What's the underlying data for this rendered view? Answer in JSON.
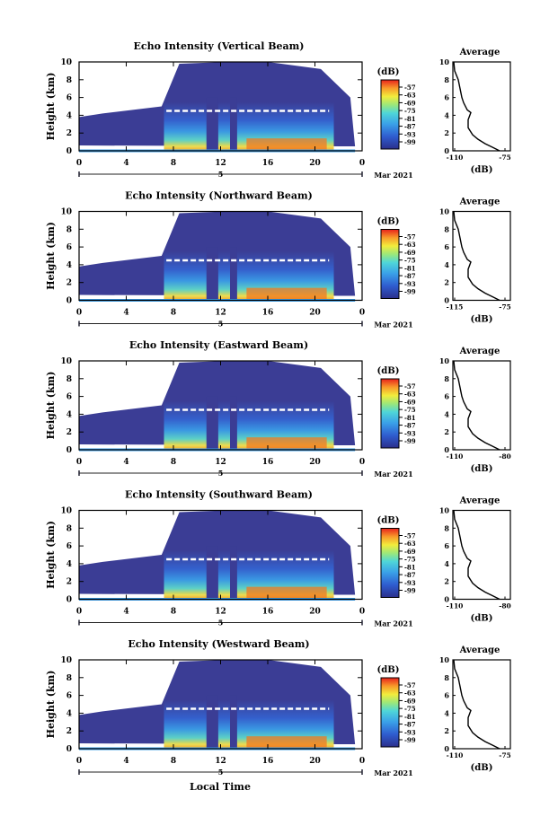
{
  "figure": {
    "xaxis_label": "Local Time",
    "colorbar_unit": "(dB)",
    "average_title": "Average",
    "average_xlabel": "(dB)",
    "date_label": "Mar 2021",
    "day_marker": "5",
    "ylabel": "Height (km)"
  },
  "chart_data": [
    {
      "type": "heatmap",
      "title": "Echo Intensity (Vertical Beam)",
      "ylabel": "Height (km)",
      "x_ticks": [
        "0",
        "4",
        "8",
        "12",
        "16",
        "20",
        "0"
      ],
      "y_ticks": [
        "0",
        "2",
        "4",
        "6",
        "8",
        "10"
      ],
      "xlim": [
        0,
        24
      ],
      "ylim": [
        0,
        10
      ],
      "colorbar_ticks": [
        "-57",
        "-63",
        "-69",
        "-75",
        "-81",
        "-87",
        "-93",
        "-99"
      ],
      "average": {
        "x_ticks": [
          "-110",
          "-75"
        ],
        "xlim": [
          -110,
          -75
        ]
      }
    },
    {
      "type": "heatmap",
      "title": "Echo Intensity (Northward Beam)",
      "ylabel": "Height (km)",
      "x_ticks": [
        "0",
        "4",
        "8",
        "12",
        "16",
        "20",
        "0"
      ],
      "y_ticks": [
        "0",
        "2",
        "4",
        "6",
        "8",
        "10"
      ],
      "xlim": [
        0,
        24
      ],
      "ylim": [
        0,
        10
      ],
      "colorbar_ticks": [
        "-57",
        "-63",
        "-69",
        "-75",
        "-81",
        "-87",
        "-93",
        "-99"
      ],
      "average": {
        "x_ticks": [
          "-115",
          "-75"
        ],
        "xlim": [
          -115,
          -75
        ]
      }
    },
    {
      "type": "heatmap",
      "title": "Echo Intensity (Eastward Beam)",
      "ylabel": "Height (km)",
      "x_ticks": [
        "0",
        "4",
        "8",
        "12",
        "16",
        "20",
        "0"
      ],
      "y_ticks": [
        "0",
        "2",
        "4",
        "6",
        "8",
        "10"
      ],
      "xlim": [
        0,
        24
      ],
      "ylim": [
        0,
        10
      ],
      "colorbar_ticks": [
        "-57",
        "-63",
        "-69",
        "-75",
        "-81",
        "-87",
        "-93",
        "-99"
      ],
      "average": {
        "x_ticks": [
          "-110",
          "-80"
        ],
        "xlim": [
          -110,
          -80
        ]
      }
    },
    {
      "type": "heatmap",
      "title": "Echo Intensity (Southward Beam)",
      "ylabel": "Height (km)",
      "x_ticks": [
        "0",
        "4",
        "8",
        "12",
        "16",
        "20",
        "0"
      ],
      "y_ticks": [
        "0",
        "2",
        "4",
        "6",
        "8",
        "10"
      ],
      "xlim": [
        0,
        24
      ],
      "ylim": [
        0,
        10
      ],
      "colorbar_ticks": [
        "-57",
        "-63",
        "-69",
        "-75",
        "-81",
        "-87",
        "-93",
        "-99"
      ],
      "average": {
        "x_ticks": [
          "-110",
          "-80"
        ],
        "xlim": [
          -110,
          -80
        ]
      }
    },
    {
      "type": "heatmap",
      "title": "Echo Intensity (Westward Beam)",
      "ylabel": "Height (km)",
      "x_ticks": [
        "0",
        "4",
        "8",
        "12",
        "16",
        "20",
        "0"
      ],
      "y_ticks": [
        "0",
        "2",
        "4",
        "6",
        "8",
        "10"
      ],
      "xlim": [
        0,
        24
      ],
      "ylim": [
        0,
        10
      ],
      "colorbar_ticks": [
        "-57",
        "-63",
        "-69",
        "-75",
        "-81",
        "-87",
        "-93",
        "-99"
      ],
      "average": {
        "x_ticks": [
          "-110",
          "-75"
        ],
        "xlim": [
          -110,
          -75
        ]
      }
    }
  ]
}
